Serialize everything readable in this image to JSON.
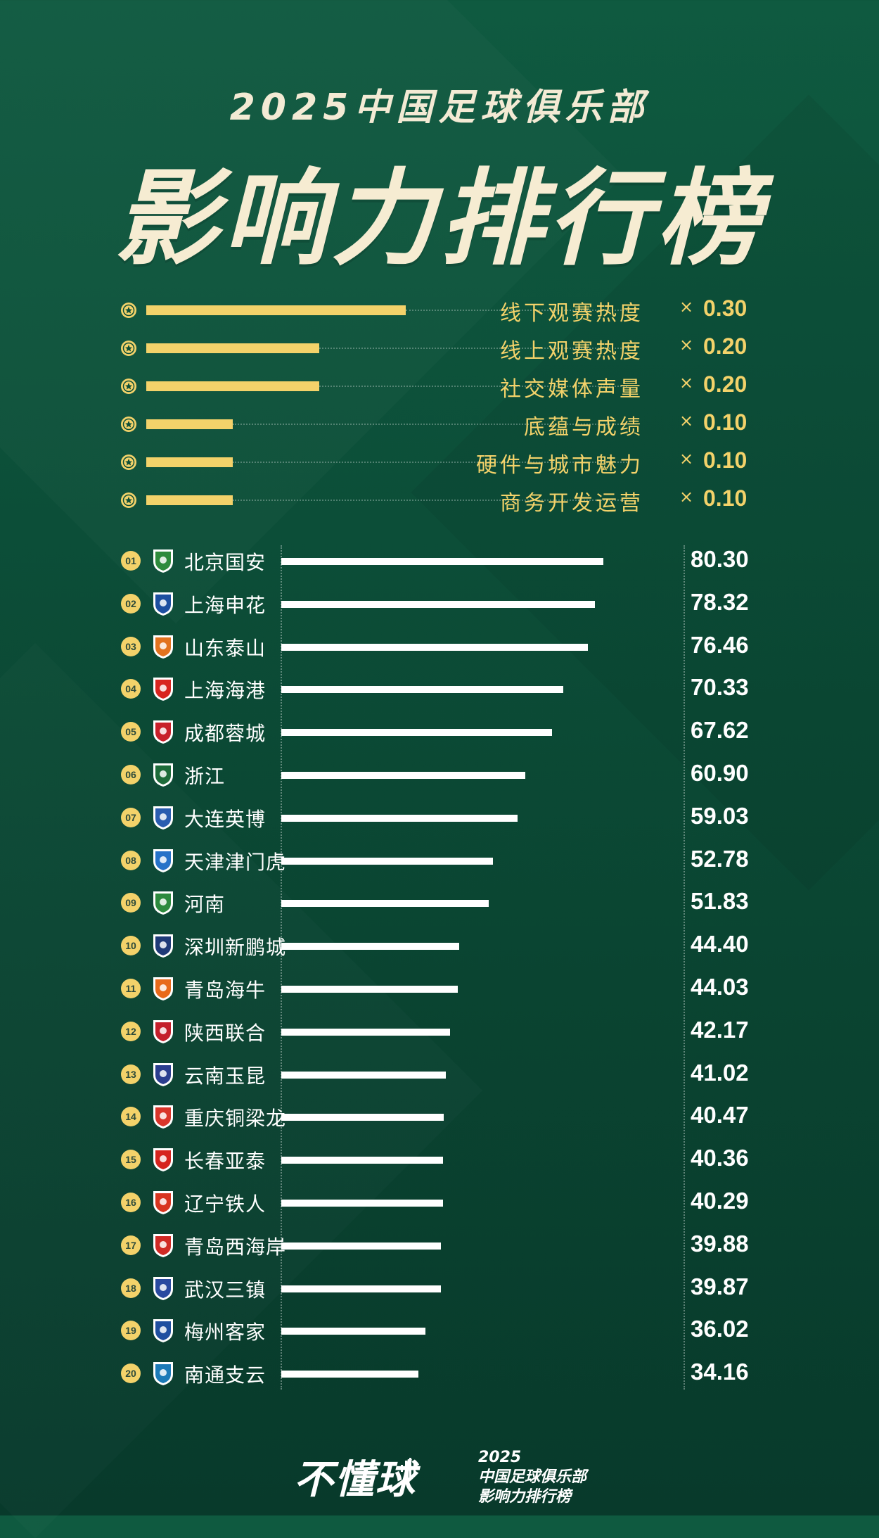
{
  "header": {
    "subtitle": "2025中国足球俱乐部",
    "title": "影响力排行榜"
  },
  "weights": [
    {
      "label": "线下观赛热度",
      "mult": "×",
      "value": 0.3,
      "value_text": "0.30"
    },
    {
      "label": "线上观赛热度",
      "mult": "×",
      "value": 0.2,
      "value_text": "0.20"
    },
    {
      "label": "社交媒体声量",
      "mult": "×",
      "value": 0.2,
      "value_text": "0.20"
    },
    {
      "label": "底蕴与成绩",
      "mult": "×",
      "value": 0.1,
      "value_text": "0.10"
    },
    {
      "label": "硬件与城市魅力",
      "mult": "×",
      "value": 0.1,
      "value_text": "0.10"
    },
    {
      "label": "商务开发运营",
      "mult": "×",
      "value": 0.1,
      "value_text": "0.10"
    }
  ],
  "chart_data": {
    "type": "bar",
    "orientation": "horizontal",
    "categories": [
      "北京国安",
      "上海申花",
      "山东泰山",
      "上海海港",
      "成都蓉城",
      "浙江",
      "大连英博",
      "天津津门虎",
      "河南",
      "深圳新鹏城",
      "青岛海牛",
      "陕西联合",
      "云南玉昆",
      "重庆铜梁龙",
      "长春亚泰",
      "辽宁铁人",
      "青岛西海岸",
      "武汉三镇",
      "梅州客家",
      "南通支云"
    ],
    "ranks": [
      "01",
      "02",
      "03",
      "04",
      "05",
      "06",
      "07",
      "08",
      "09",
      "10",
      "11",
      "12",
      "13",
      "14",
      "15",
      "16",
      "17",
      "18",
      "19",
      "20"
    ],
    "values": [
      80.3,
      78.32,
      76.46,
      70.33,
      67.62,
      60.9,
      59.03,
      52.78,
      51.83,
      44.4,
      44.03,
      42.17,
      41.02,
      40.47,
      40.36,
      40.29,
      39.88,
      39.87,
      36.02,
      34.16
    ],
    "value_labels": [
      "80.30",
      "78.32",
      "76.46",
      "70.33",
      "67.62",
      "60.90",
      "59.03",
      "52.78",
      "51.83",
      "44.40",
      "44.03",
      "42.17",
      "41.02",
      "40.47",
      "40.36",
      "40.29",
      "39.88",
      "39.87",
      "36.02",
      "34.16"
    ],
    "logo_colors": [
      "#2e8b3c",
      "#1d4fa0",
      "#e2731f",
      "#d8251f",
      "#c8202a",
      "#1d6b3a",
      "#2a5db0",
      "#2672c8",
      "#2c8a3e",
      "#1f3a78",
      "#e86a1a",
      "#c41f2b",
      "#2b3e8f",
      "#d9352a",
      "#d6241e",
      "#d8351f",
      "#d02a25",
      "#2a4aa0",
      "#1f4fa0",
      "#1c7ab8"
    ],
    "grid": false,
    "legend": "none"
  },
  "footer": {
    "brand": "不懂球",
    "line1": "2025",
    "line2": "中国足球俱乐部",
    "line3": "影响力排行榜"
  },
  "colors": {
    "accent": "#f3d26a",
    "bar": "#ffffff",
    "background": "#0c4e38"
  }
}
